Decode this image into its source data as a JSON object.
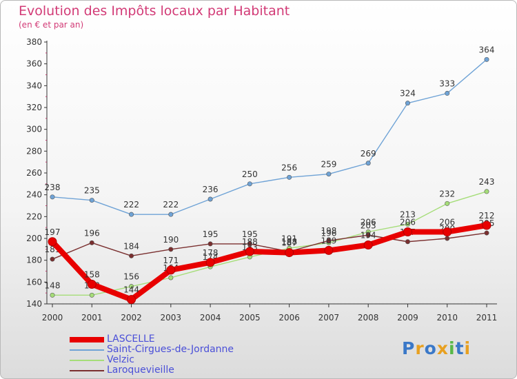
{
  "header": {
    "title": "Evolution des Impôts locaux par Habitant",
    "subtitle": "(en € et par an)"
  },
  "chart_data": {
    "type": "line",
    "title": "Evolution des Impôts locaux par Habitant",
    "subtitle": "(en € et par an)",
    "xlabel": "",
    "ylabel": "",
    "categories": [
      "2000",
      "2001",
      "2002",
      "2003",
      "2004",
      "2005",
      "2006",
      "2007",
      "2008",
      "2009",
      "2010",
      "2011"
    ],
    "ylim": [
      140,
      380
    ],
    "yticks": [
      140,
      160,
      180,
      200,
      220,
      240,
      260,
      280,
      300,
      320,
      340,
      360,
      380
    ],
    "grid": false,
    "legend_position": "bottom-left",
    "series": [
      {
        "name": "LASCELLE",
        "color": "#e80000",
        "values": [
          197,
          158,
          144,
          171,
          178,
          188,
          187,
          189,
          194,
          206,
          206,
          212
        ]
      },
      {
        "name": "Saint-Cirgues-de-Jordanne",
        "color": "#6fa3d6",
        "values": [
          238,
          235,
          222,
          222,
          236,
          250,
          256,
          259,
          269,
          324,
          333,
          364
        ]
      },
      {
        "name": "Velzic",
        "color": "#a5dd78",
        "values": [
          148,
          148,
          156,
          164,
          174,
          183,
          191,
          196,
          206,
          213,
          232,
          243
        ]
      },
      {
        "name": "Laroquevieille",
        "color": "#7a2f2f",
        "values": [
          181,
          196,
          184,
          190,
          195,
          195,
          188,
          198,
          203,
          197,
          200,
          205
        ]
      }
    ]
  },
  "logo": {
    "letters": [
      "P",
      "r",
      "o",
      "x",
      "i",
      "t",
      "i"
    ],
    "colors": [
      "#3a78c8",
      "#e8a020",
      "#3a78c8",
      "#e8a020",
      "#58b848",
      "#3a78c8",
      "#e8a020"
    ]
  }
}
